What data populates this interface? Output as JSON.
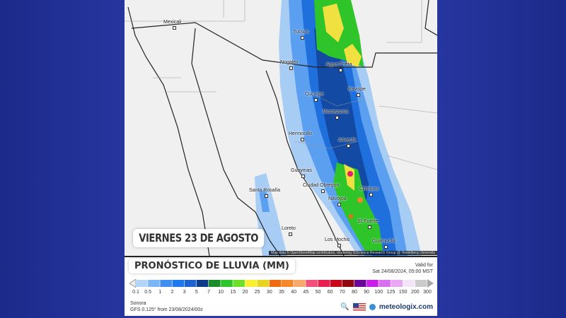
{
  "map": {
    "day_label": "VIERNES 23 DE AGOSTO",
    "attribution": "Map data © OpenStreetMap contributors, rendering GIScience Research Group @ Heidelberg University",
    "cities": [
      {
        "name": "Mexicali"
      },
      {
        "name": "Tucson"
      },
      {
        "name": "Nogales"
      },
      {
        "name": "Agua Prieta"
      },
      {
        "name": "Cucurpe"
      },
      {
        "name": "Bavispe"
      },
      {
        "name": "Moctezuma"
      },
      {
        "name": "Hermosillo"
      },
      {
        "name": "Arivechi"
      },
      {
        "name": "Guaymas"
      },
      {
        "name": "Ciudad Obregon"
      },
      {
        "name": "Chinipas"
      },
      {
        "name": "Navojoa"
      },
      {
        "name": "El Fuerte"
      },
      {
        "name": "Los Mochis"
      },
      {
        "name": "Santa Rosalía"
      },
      {
        "name": "Loreto"
      },
      {
        "name": "Guamuchil"
      }
    ]
  },
  "legend": {
    "title": "PRONÓSTICO DE LLUVIA (MM)",
    "valid_label": "Valid for",
    "valid_time": "Sat 24/08/2024, 05:00 MST",
    "ticks": [
      "0.1",
      "0.5",
      "1",
      "2",
      "3",
      "5",
      "7",
      "10",
      "15",
      "20",
      "25",
      "30",
      "35",
      "40",
      "45",
      "50",
      "60",
      "70",
      "80",
      "90",
      "100",
      "125",
      "150",
      "200",
      "300"
    ],
    "colors": [
      "#b4d4f8",
      "#7cb6f4",
      "#3f8ff0",
      "#1f78ee",
      "#1d64d2",
      "#0e3a8a",
      "#1a8c2a",
      "#2ec42a",
      "#6ee02a",
      "#f8f030",
      "#e8d420",
      "#f06a10",
      "#f4882a",
      "#f8a86a",
      "#f0507a",
      "#e82050",
      "#c80818",
      "#900810",
      "#6a0898",
      "#c820e8",
      "#d870f0",
      "#e8a8f4",
      "#f4e4f8",
      "#cccccc"
    ]
  },
  "footer": {
    "region": "Sonora",
    "model": "GFS 0.125° from  23/08/2024/00z",
    "brand": "meteologix.com",
    "icons": [
      "zoom-hd-icon",
      "us-flag-icon",
      "meteologix-logo-icon"
    ]
  }
}
